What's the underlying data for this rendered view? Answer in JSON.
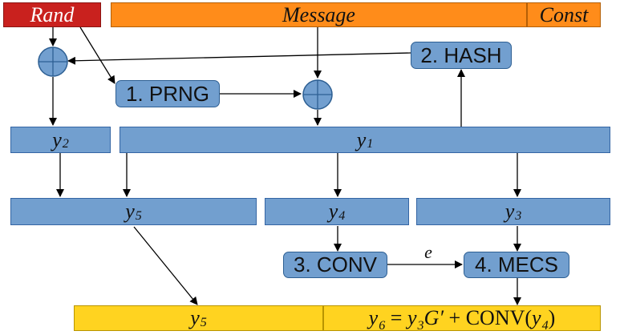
{
  "colors": {
    "rand_fill": "#c9211e",
    "message_fill": "#ff8c1a",
    "bar_fill": "#729fcf",
    "process_fill": "#729fcf",
    "output_fill": "#ffd320",
    "line": "#000000"
  },
  "inputs": {
    "rand": "Rand",
    "message": "Message",
    "const": "Const"
  },
  "processes": {
    "prng": "1. PRNG",
    "hash": "2. HASH",
    "conv": "3. CONV",
    "mecs": "4. MECS"
  },
  "xor_icon": "circle-plus-icon",
  "variables": {
    "y_label": "y",
    "y2_sub": "2",
    "y1_sub": "1",
    "y5_sub": "5",
    "y4_sub": "4",
    "y3_sub": "3",
    "y6_sub": "6"
  },
  "edge_labels": {
    "e": "e"
  },
  "output": {
    "left_y": "y",
    "left_sub": "5",
    "eq_y6": "y",
    "eq_y6_sub": "6",
    "eq_equals": " = ",
    "eq_y3": "y",
    "eq_y3_sub": "3",
    "eq_g": "G′",
    "eq_plus": " + ",
    "eq_conv": "CONV(",
    "eq_y4": "y",
    "eq_y4_sub": "4",
    "eq_close": ")"
  }
}
